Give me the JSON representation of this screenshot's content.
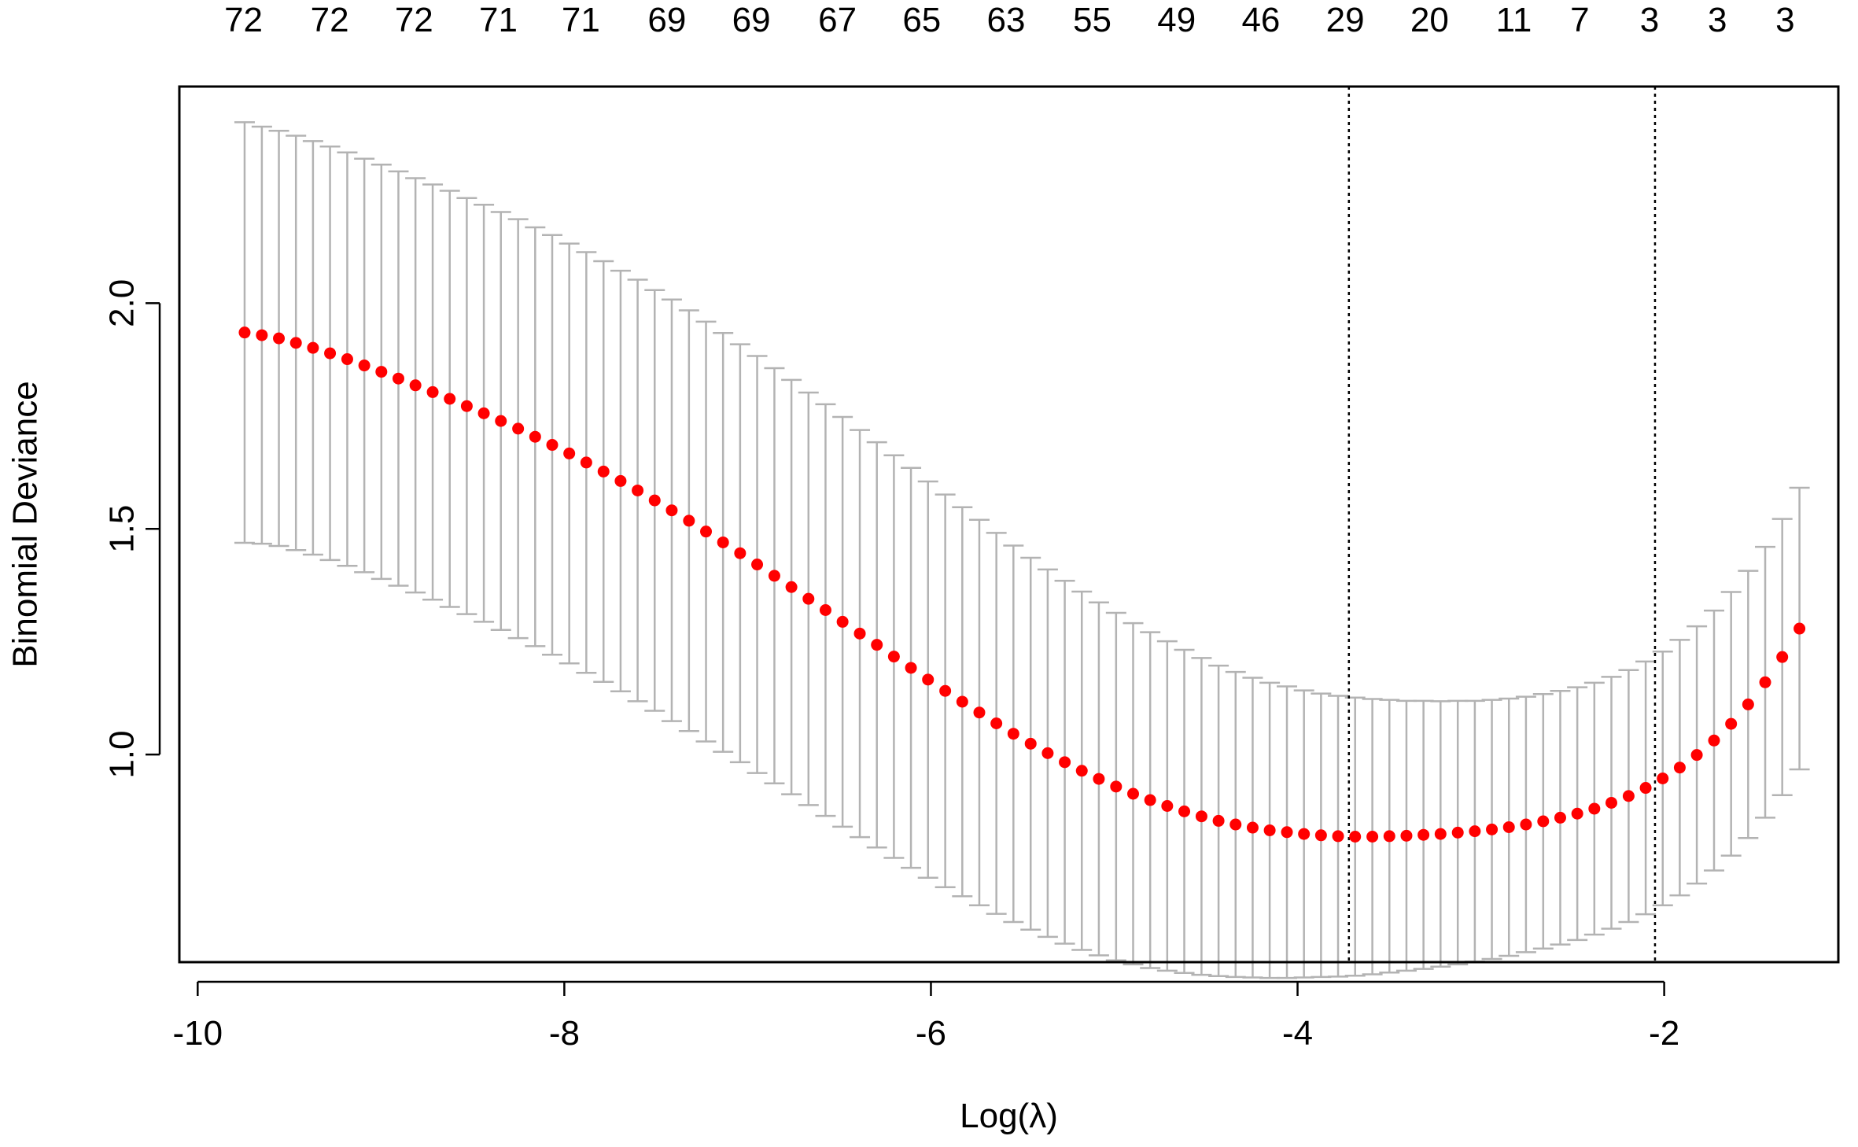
{
  "chart_data": {
    "type": "scatter",
    "xlabel": "Log(λ)",
    "ylabel": "Binomial Deviance",
    "xlim": [
      -10.1,
      -1.05
    ],
    "ylim": [
      0.54,
      2.48
    ],
    "x_ticks": [
      -10,
      -8,
      -6,
      -4,
      -2
    ],
    "x_tick_labels": [
      "-10",
      "-8",
      "-6",
      "-4",
      "-2"
    ],
    "y_ticks": [
      1.0,
      1.5,
      2.0
    ],
    "y_tick_labels": [
      "1.0",
      "1.5",
      "2.0"
    ],
    "grid": false,
    "top_axis": {
      "x": [
        -9.75,
        -9.28,
        -8.82,
        -8.36,
        -7.91,
        -7.44,
        -6.98,
        -6.51,
        -6.05,
        -5.59,
        -5.12,
        -4.66,
        -4.2,
        -3.74,
        -3.28,
        -2.82,
        -2.46,
        -2.08,
        -1.71,
        -1.34
      ],
      "labels": [
        "72",
        "72",
        "72",
        "71",
        "71",
        "69",
        "69",
        "67",
        "65",
        "63",
        "55",
        "49",
        "46",
        "29",
        "20",
        "11",
        "7",
        "3",
        "3",
        "3"
      ]
    },
    "vlines": [
      -3.72,
      -2.05
    ],
    "series": [
      {
        "point_color": "#ff0000",
        "errorbar_color": "#b3b3b3",
        "x": [
          -9.744,
          -9.65,
          -9.557,
          -9.464,
          -9.371,
          -9.278,
          -9.184,
          -9.091,
          -8.998,
          -8.905,
          -8.812,
          -8.718,
          -8.625,
          -8.532,
          -8.439,
          -8.346,
          -8.252,
          -8.159,
          -8.066,
          -7.973,
          -7.88,
          -7.786,
          -7.693,
          -7.6,
          -7.507,
          -7.414,
          -7.32,
          -7.227,
          -7.134,
          -7.041,
          -6.948,
          -6.854,
          -6.761,
          -6.668,
          -6.575,
          -6.482,
          -6.388,
          -6.295,
          -6.202,
          -6.109,
          -6.016,
          -5.922,
          -5.829,
          -5.736,
          -5.643,
          -5.55,
          -5.456,
          -5.363,
          -5.27,
          -5.177,
          -5.084,
          -4.99,
          -4.897,
          -4.804,
          -4.711,
          -4.618,
          -4.524,
          -4.431,
          -4.338,
          -4.245,
          -4.152,
          -4.058,
          -3.965,
          -3.872,
          -3.779,
          -3.686,
          -3.592,
          -3.499,
          -3.406,
          -3.313,
          -3.22,
          -3.126,
          -3.033,
          -2.94,
          -2.847,
          -2.754,
          -2.66,
          -2.567,
          -2.474,
          -2.381,
          -2.288,
          -2.194,
          -2.101,
          -2.008,
          -1.915,
          -1.822,
          -1.728,
          -1.635,
          -1.542,
          -1.449,
          -1.356,
          -1.262
        ],
        "values": [
          1.935,
          1.929,
          1.922,
          1.912,
          1.901,
          1.889,
          1.876,
          1.862,
          1.848,
          1.833,
          1.818,
          1.803,
          1.788,
          1.772,
          1.756,
          1.739,
          1.722,
          1.704,
          1.686,
          1.667,
          1.647,
          1.627,
          1.606,
          1.585,
          1.563,
          1.541,
          1.518,
          1.494,
          1.47,
          1.446,
          1.421,
          1.396,
          1.371,
          1.345,
          1.32,
          1.294,
          1.268,
          1.243,
          1.217,
          1.192,
          1.166,
          1.141,
          1.117,
          1.093,
          1.069,
          1.046,
          1.024,
          1.003,
          0.983,
          0.964,
          0.946,
          0.929,
          0.913,
          0.899,
          0.886,
          0.874,
          0.863,
          0.853,
          0.845,
          0.838,
          0.832,
          0.828,
          0.824,
          0.821,
          0.819,
          0.818,
          0.818,
          0.819,
          0.82,
          0.822,
          0.824,
          0.827,
          0.83,
          0.834,
          0.839,
          0.845,
          0.852,
          0.86,
          0.869,
          0.88,
          0.893,
          0.908,
          0.926,
          0.947,
          0.971,
          0.999,
          1.031,
          1.068,
          1.111,
          1.16,
          1.216,
          1.279
        ],
        "lower": [
          1.469,
          1.467,
          1.462,
          1.453,
          1.443,
          1.431,
          1.418,
          1.404,
          1.389,
          1.374,
          1.359,
          1.343,
          1.327,
          1.311,
          1.294,
          1.276,
          1.258,
          1.24,
          1.221,
          1.202,
          1.181,
          1.161,
          1.14,
          1.118,
          1.097,
          1.074,
          1.052,
          1.029,
          1.006,
          0.983,
          0.959,
          0.936,
          0.912,
          0.888,
          0.864,
          0.84,
          0.817,
          0.794,
          0.771,
          0.749,
          0.727,
          0.706,
          0.686,
          0.666,
          0.647,
          0.629,
          0.612,
          0.596,
          0.581,
          0.567,
          0.555,
          0.544,
          0.535,
          0.527,
          0.521,
          0.516,
          0.512,
          0.509,
          0.507,
          0.506,
          0.505,
          0.505,
          0.506,
          0.507,
          0.508,
          0.51,
          0.513,
          0.517,
          0.521,
          0.525,
          0.53,
          0.535,
          0.541,
          0.547,
          0.554,
          0.562,
          0.57,
          0.579,
          0.589,
          0.601,
          0.614,
          0.629,
          0.646,
          0.666,
          0.688,
          0.714,
          0.743,
          0.776,
          0.815,
          0.86,
          0.91,
          0.967
        ],
        "upper": [
          2.401,
          2.391,
          2.382,
          2.371,
          2.359,
          2.347,
          2.334,
          2.32,
          2.307,
          2.292,
          2.277,
          2.263,
          2.249,
          2.233,
          2.218,
          2.202,
          2.186,
          2.168,
          2.151,
          2.132,
          2.113,
          2.093,
          2.072,
          2.052,
          2.029,
          2.008,
          1.984,
          1.959,
          1.934,
          1.909,
          1.883,
          1.856,
          1.83,
          1.802,
          1.776,
          1.748,
          1.719,
          1.692,
          1.663,
          1.635,
          1.605,
          1.576,
          1.548,
          1.52,
          1.491,
          1.463,
          1.436,
          1.41,
          1.385,
          1.361,
          1.337,
          1.314,
          1.291,
          1.271,
          1.251,
          1.232,
          1.214,
          1.197,
          1.183,
          1.17,
          1.159,
          1.151,
          1.142,
          1.135,
          1.13,
          1.126,
          1.123,
          1.121,
          1.119,
          1.119,
          1.118,
          1.119,
          1.119,
          1.121,
          1.124,
          1.128,
          1.134,
          1.141,
          1.149,
          1.159,
          1.172,
          1.187,
          1.206,
          1.228,
          1.254,
          1.284,
          1.319,
          1.36,
          1.407,
          1.46,
          1.522,
          1.591
        ]
      }
    ]
  }
}
